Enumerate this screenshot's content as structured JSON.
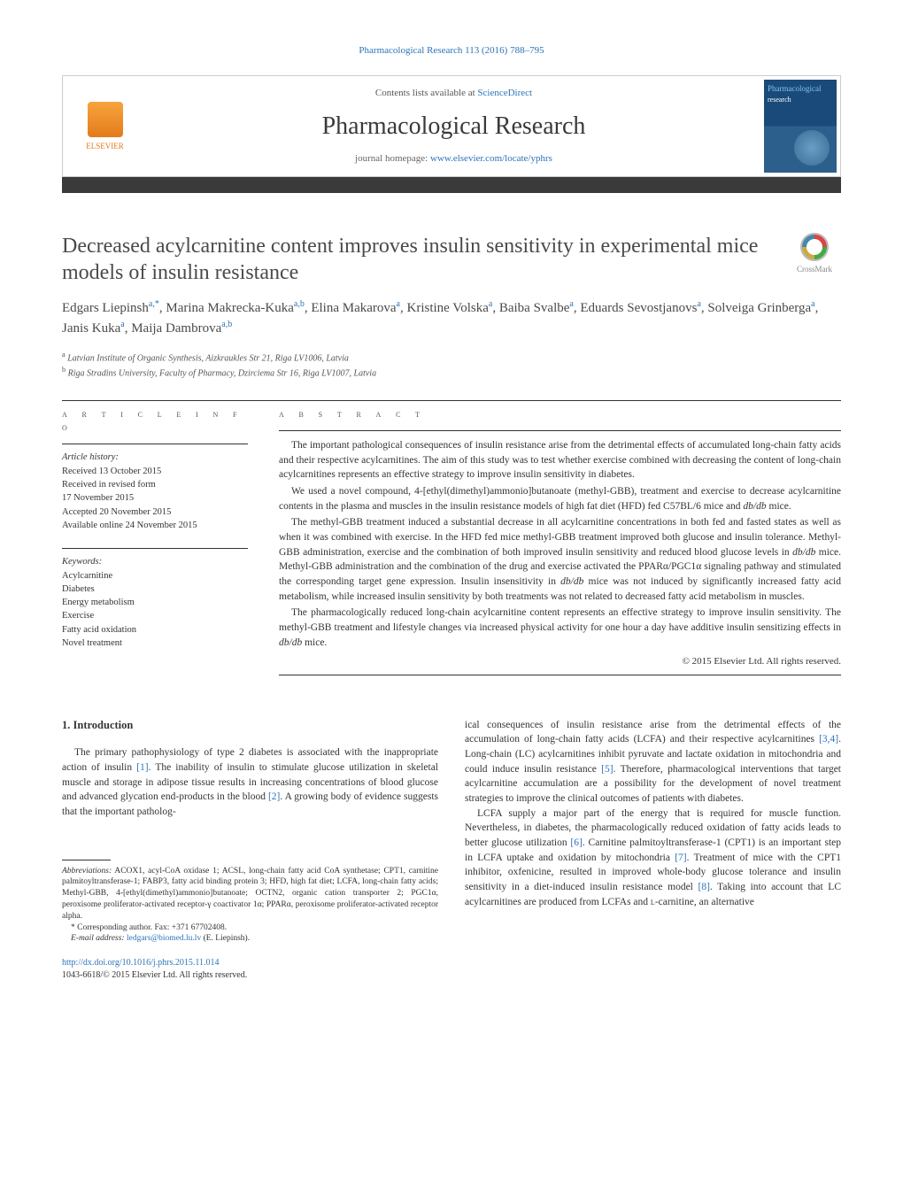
{
  "runningHeader": {
    "journalLink": "Pharmacological Research",
    "citation": "113 (2016) 788–795"
  },
  "masthead": {
    "publisher": "ELSEVIER",
    "contents_prefix": "Contents lists available at ",
    "contents_link": "ScienceDirect",
    "journal": "Pharmacological Research",
    "homepage_prefix": "journal homepage: ",
    "homepage_url": "www.elsevier.com/locate/yphrs",
    "cover_label_1": "Pharmacological",
    "cover_label_2": "research"
  },
  "crossmark_label": "CrossMark",
  "title": "Decreased acylcarnitine content improves insulin sensitivity in experimental mice models of insulin resistance",
  "authors_html": "Edgars Liepinsh|a,*|, Marina Makrecka-Kuka|a,b|, Elina Makarova|a|, Kristine Volska|a|, Baiba Svalbe|a|, Eduards Sevostjanovs|a|, Solveiga Grinberga|a|, Janis Kuka|a|, Maija Dambrova|a,b|",
  "affiliations": [
    {
      "marker": "a",
      "text": "Latvian Institute of Organic Synthesis, Aizkraukles Str 21, Riga LV1006, Latvia"
    },
    {
      "marker": "b",
      "text": "Riga Stradins University, Faculty of Pharmacy, Dzirciema Str 16, Riga LV1007, Latvia"
    }
  ],
  "info_heading": "a r t i c l e   i n f o",
  "abs_heading": "a b s t r a c t",
  "article_history": {
    "label": "Article history:",
    "lines": [
      "Received 13 October 2015",
      "Received in revised form",
      "17 November 2015",
      "Accepted 20 November 2015",
      "Available online 24 November 2015"
    ]
  },
  "keywords": {
    "label": "Keywords:",
    "items": [
      "Acylcarnitine",
      "Diabetes",
      "Energy metabolism",
      "Exercise",
      "Fatty acid oxidation",
      "Novel treatment"
    ]
  },
  "abstract_paras": [
    "The important pathological consequences of insulin resistance arise from the detrimental effects of accumulated long-chain fatty acids and their respective acylcarnitines. The aim of this study was to test whether exercise combined with decreasing the content of long-chain acylcarnitines represents an effective strategy to improve insulin sensitivity in diabetes.",
    "We used a novel compound, 4-[ethyl(dimethyl)ammonio]butanoate (methyl-GBB), treatment and exercise to decrease acylcarnitine contents in the plasma and muscles in the insulin resistance models of high fat diet (HFD) fed C57BL/6 mice and db/db mice.",
    "The methyl-GBB treatment induced a substantial decrease in all acylcarnitine concentrations in both fed and fasted states as well as when it was combined with exercise. In the HFD fed mice methyl-GBB treatment improved both glucose and insulin tolerance. Methyl-GBB administration, exercise and the combination of both improved insulin sensitivity and reduced blood glucose levels in db/db mice. Methyl-GBB administration and the combination of the drug and exercise activated the PPARα/PGC1α signaling pathway and stimulated the corresponding target gene expression. Insulin insensitivity in db/db mice was not induced by significantly increased fatty acid metabolism, while increased insulin sensitivity by both treatments was not related to decreased fatty acid metabolism in muscles.",
    "The pharmacologically reduced long-chain acylcarnitine content represents an effective strategy to improve insulin sensitivity. The methyl-GBB treatment and lifestyle changes via increased physical activity for one hour a day have additive insulin sensitizing effects in db/db mice."
  ],
  "abstract_copyright": "© 2015 Elsevier Ltd. All rights reserved.",
  "section_1_heading": "1. Introduction",
  "intro_left": "The primary pathophysiology of type 2 diabetes is associated with the inappropriate action of insulin [1]. The inability of insulin to stimulate glucose utilization in skeletal muscle and storage in adipose tissue results in increasing concentrations of blood glucose and advanced glycation end-products in the blood [2]. A growing body of evidence suggests that the important patholog-",
  "intro_right_p1": "ical consequences of insulin resistance arise from the detrimental effects of the accumulation of long-chain fatty acids (LCFA) and their respective acylcarnitines [3,4]. Long-chain (LC) acylcarnitines inhibit pyruvate and lactate oxidation in mitochondria and could induce insulin resistance [5]. Therefore, pharmacological interventions that target acylcarnitine accumulation are a possibility for the development of novel treatment strategies to improve the clinical outcomes of patients with diabetes.",
  "intro_right_p2": "LCFA supply a major part of the energy that is required for muscle function. Nevertheless, in diabetes, the pharmacologically reduced oxidation of fatty acids leads to better glucose utilization [6]. Carnitine palmitoyltransferase-1 (CPT1) is an important step in LCFA uptake and oxidation by mitochondria [7]. Treatment of mice with the CPT1 inhibitor, oxfenicine, resulted in improved whole-body glucose tolerance and insulin sensitivity in a diet-induced insulin resistance model [8]. Taking into account that LC acylcarnitines are produced from LCFAs and L-carnitine, an alternative",
  "abbreviations": {
    "label": "Abbreviations:",
    "text": "ACOX1, acyl-CoA oxidase 1; ACSL, long-chain fatty acid CoA synthetase; CPT1, carnitine palmitoyltransferase-1; FABP3, fatty acid binding protein 3; HFD, high fat diet; LCFA, long-chain fatty acids; Methyl-GBB, 4-[ethyl(dimethyl)ammonio]butanoate; OCTN2, organic cation transporter 2; PGC1α, peroxisome proliferator-activated receptor-γ coactivator 1α; PPARα, peroxisome proliferator-activated receptor alpha."
  },
  "corresponding": {
    "marker": "*",
    "text": "Corresponding author. Fax: +371 67702408."
  },
  "email": {
    "label": "E-mail address:",
    "address": "ledgars@biomed.lu.lv",
    "person": " (E. Liepinsh)."
  },
  "doi": "http://dx.doi.org/10.1016/j.phrs.2015.11.014",
  "footer_copy": "1043-6618/© 2015 Elsevier Ltd. All rights reserved."
}
